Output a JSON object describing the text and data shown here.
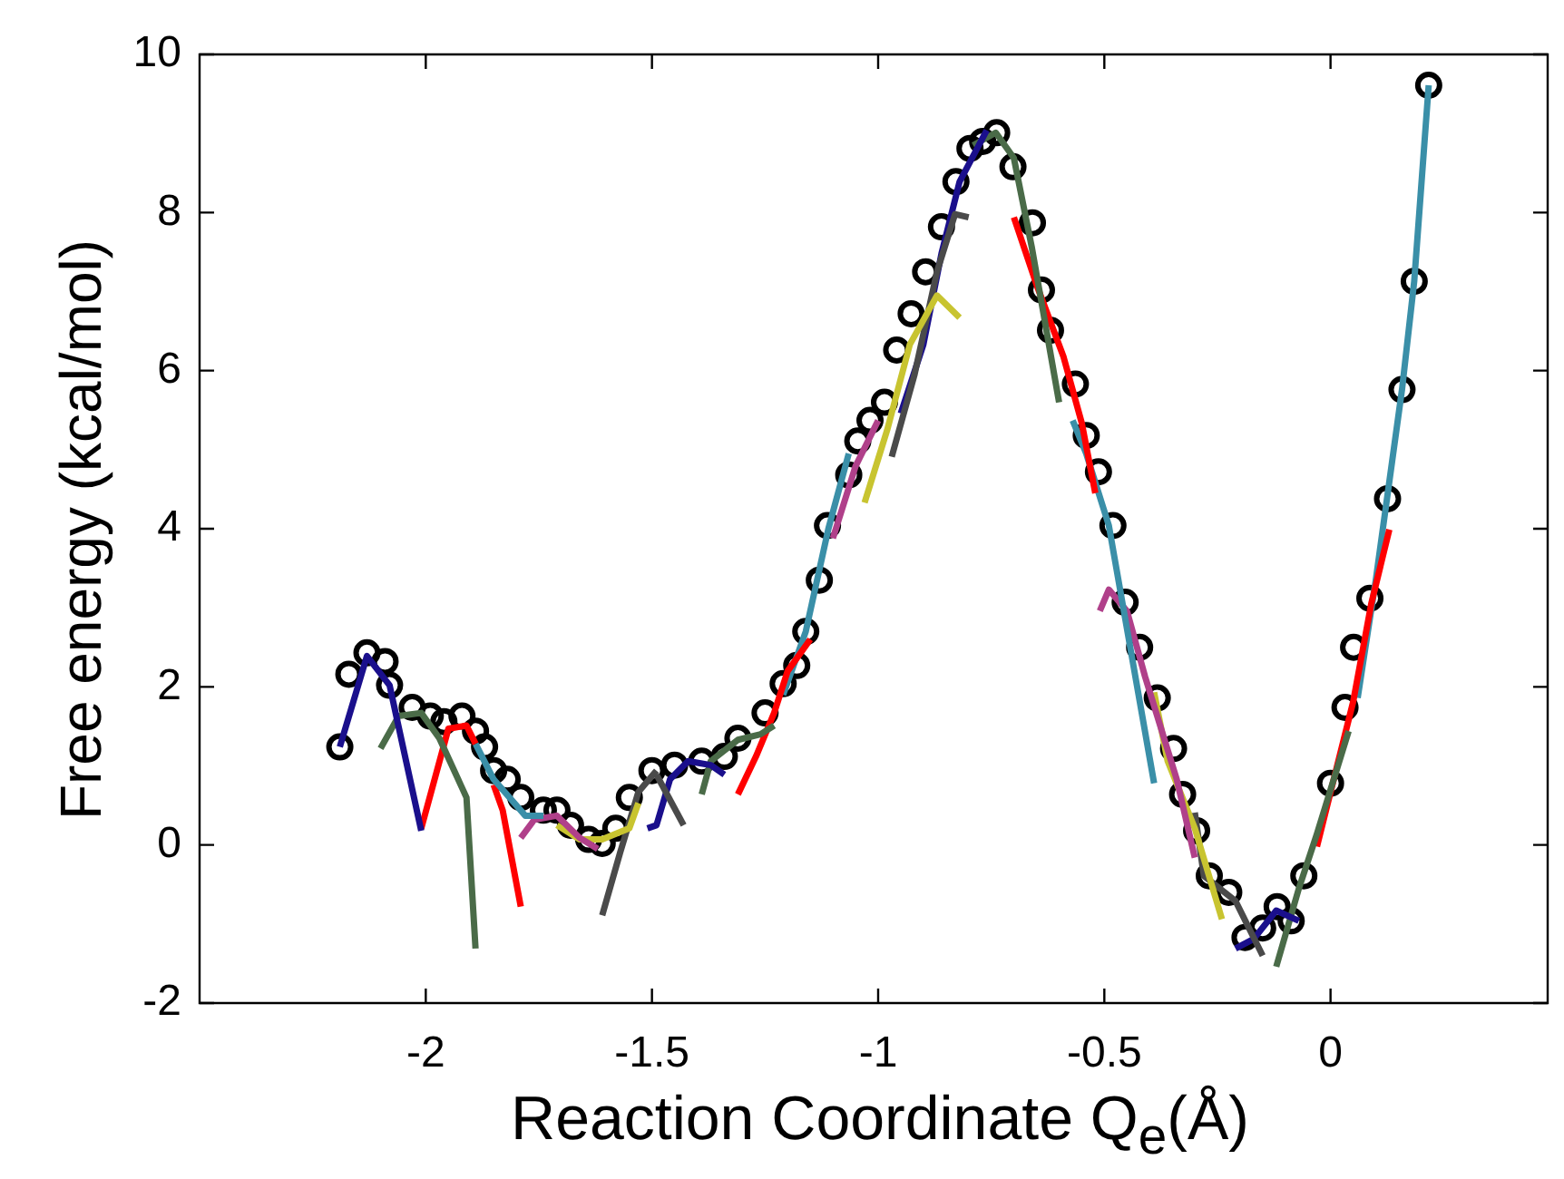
{
  "chart_data": {
    "type": "scatter",
    "xlabel": "Reaction Coordinate Q$_{e}$(Å)",
    "ylabel": "Free energy (kcal/mol)",
    "xlim": [
      -2.5,
      0.48
    ],
    "ylim": [
      -2,
      10
    ],
    "xticks": [
      -2,
      -1.5,
      -1,
      -0.5,
      0
    ],
    "yticks": [
      -2,
      0,
      2,
      4,
      6,
      8,
      10
    ],
    "grid": false,
    "legend": false,
    "series": [
      {
        "marker": "circle",
        "color": "#000000",
        "x": [
          -2.19,
          -2.17,
          -2.13,
          -2.09,
          -2.08,
          -2.03,
          -1.99,
          -1.96,
          -1.92,
          -1.89,
          -1.87,
          -1.85,
          -1.82,
          -1.79,
          -1.74,
          -1.71,
          -1.68,
          -1.64,
          -1.61,
          -1.58,
          -1.55,
          -1.5,
          -1.45,
          -1.39,
          -1.34,
          -1.31,
          -1.25,
          -1.21,
          -1.18,
          -1.16,
          -1.13,
          -1.112,
          -1.065,
          -1.045,
          -1.018,
          -0.986,
          -0.959,
          -0.927,
          -0.895,
          -0.86,
          -0.828,
          -0.797,
          -0.769,
          -0.738,
          -0.702,
          -0.659,
          -0.639,
          -0.619,
          -0.564,
          -0.54,
          -0.513,
          -0.481,
          -0.454,
          -0.422,
          -0.383,
          -0.347,
          -0.327,
          -0.296,
          -0.268,
          -0.225,
          -0.189,
          -0.15,
          -0.118,
          -0.087,
          -0.059,
          0.0,
          0.032,
          0.051,
          0.087,
          0.126,
          0.158,
          0.185,
          0.217
        ],
        "values": [
          1.24,
          2.16,
          2.43,
          2.32,
          2.02,
          1.74,
          1.63,
          1.56,
          1.63,
          1.44,
          1.24,
          0.94,
          0.83,
          0.6,
          0.44,
          0.44,
          0.25,
          0.07,
          0.02,
          0.21,
          0.6,
          0.94,
          1.01,
          1.06,
          1.12,
          1.35,
          1.67,
          2.04,
          2.27,
          2.7,
          3.35,
          4.04,
          4.68,
          5.11,
          5.37,
          5.6,
          6.26,
          6.72,
          7.25,
          7.82,
          8.39,
          8.81,
          8.9,
          9.01,
          8.58,
          7.87,
          7.02,
          6.51,
          5.83,
          5.18,
          4.72,
          4.04,
          3.07,
          2.5,
          1.86,
          1.22,
          0.64,
          0.18,
          -0.39,
          -0.6,
          -1.17,
          -1.05,
          -0.78,
          -0.96,
          -0.39,
          0.78,
          1.74,
          2.5,
          3.12,
          4.38,
          5.76,
          7.13,
          9.61
        ]
      },
      {
        "type": "line",
        "marker": "none",
        "color": "#1a0f8c",
        "x": [
          -2.19,
          -2.13,
          -2.08,
          -2.01
        ],
        "values": [
          1.24,
          2.39,
          2.02,
          0.18
        ]
      },
      {
        "type": "line",
        "marker": "none",
        "color": "#4a6b48",
        "x": [
          -2.1,
          -2.06,
          -2.01,
          -1.97,
          -1.91,
          -1.89
        ],
        "values": [
          1.22,
          1.63,
          1.67,
          1.35,
          0.6,
          -1.31
        ]
      },
      {
        "type": "line",
        "marker": "none",
        "color": "#ff0000",
        "x": [
          -2.01,
          -1.95,
          -1.91,
          -1.89
        ],
        "values": [
          0.21,
          1.47,
          1.51,
          1.28
        ]
      },
      {
        "type": "line",
        "marker": "none",
        "color": "#3a8fa8",
        "x": [
          -1.89,
          -1.85,
          -1.78,
          -1.74
        ],
        "values": [
          1.28,
          0.83,
          0.37,
          0.37
        ]
      },
      {
        "type": "line",
        "marker": "none",
        "color": "#ff0000",
        "x": [
          -1.85,
          -1.83,
          -1.79
        ],
        "values": [
          0.76,
          0.44,
          -0.78
        ]
      },
      {
        "type": "line",
        "marker": "none",
        "color": "#b0408a",
        "x": [
          -1.79,
          -1.76,
          -1.71,
          -1.66,
          -1.62
        ],
        "values": [
          0.09,
          0.32,
          0.37,
          0.09,
          -0.05
        ]
      },
      {
        "type": "line",
        "marker": "none",
        "color": "#c8c430",
        "x": [
          -1.71,
          -1.66,
          -1.61,
          -1.55,
          -1.53
        ],
        "values": [
          0.25,
          0.07,
          0.07,
          0.21,
          0.53
        ]
      },
      {
        "type": "line",
        "marker": "none",
        "color": "#4a4a4a",
        "x": [
          -1.61,
          -1.57,
          -1.53,
          -1.49
        ],
        "values": [
          -0.89,
          -0.09,
          0.67,
          0.94
        ]
      },
      {
        "type": "line",
        "marker": "none",
        "color": "#4a4a4a",
        "x": [
          -1.49,
          -1.43
        ],
        "values": [
          0.89,
          0.25
        ]
      },
      {
        "type": "line",
        "marker": "none",
        "color": "#1a0f8c",
        "x": [
          -1.51,
          -1.49,
          -1.46,
          -1.42,
          -1.37,
          -1.34
        ],
        "values": [
          0.21,
          0.25,
          0.83,
          1.06,
          1.01,
          0.89
        ]
      },
      {
        "type": "line",
        "marker": "none",
        "color": "#4a6b48",
        "x": [
          -1.39,
          -1.37,
          -1.31,
          -1.26,
          -1.23
        ],
        "values": [
          0.64,
          1.06,
          1.33,
          1.4,
          1.51
        ]
      },
      {
        "type": "line",
        "marker": "none",
        "color": "#ff0000",
        "x": [
          -1.31,
          -1.27,
          -1.23,
          -1.2,
          -1.15
        ],
        "values": [
          0.64,
          1.12,
          1.67,
          2.2,
          2.6
        ]
      },
      {
        "type": "line",
        "marker": "none",
        "color": "#3a8fa8",
        "x": [
          -1.21,
          -1.16,
          -1.11,
          -1.065
        ],
        "values": [
          1.9,
          2.7,
          4.0,
          4.95
        ]
      },
      {
        "type": "line",
        "marker": "none",
        "color": "#b0408a",
        "x": [
          -1.1,
          -1.05,
          -1.0
        ],
        "values": [
          3.88,
          4.79,
          5.37
        ]
      },
      {
        "type": "line",
        "marker": "none",
        "color": "#c8c430",
        "x": [
          -1.03,
          -0.98,
          -0.93,
          -0.87,
          -0.82
        ],
        "values": [
          4.33,
          5.25,
          6.33,
          6.95,
          6.67
        ]
      },
      {
        "type": "line",
        "marker": "none",
        "color": "#4a4a4a",
        "x": [
          -0.97,
          -0.92,
          -0.87,
          -0.83,
          -0.8
        ],
        "values": [
          4.91,
          5.94,
          7.25,
          7.98,
          7.94
        ]
      },
      {
        "type": "line",
        "marker": "none",
        "color": "#1a0f8c",
        "x": [
          -0.95,
          -0.9,
          -0.86,
          -0.82,
          -0.76
        ],
        "values": [
          5.46,
          6.33,
          7.48,
          8.39,
          9.04
        ]
      },
      {
        "type": "line",
        "marker": "none",
        "color": "#4a6b48",
        "x": [
          -0.79,
          -0.74,
          -0.7,
          -0.66,
          -0.6
        ],
        "values": [
          8.85,
          9.01,
          8.69,
          7.55,
          5.6
        ]
      },
      {
        "type": "line",
        "marker": "none",
        "color": "#ff0000",
        "x": [
          -0.7,
          -0.65,
          -0.59,
          -0.55,
          -0.52
        ],
        "values": [
          7.94,
          7.09,
          6.17,
          5.34,
          4.45
        ]
      },
      {
        "type": "line",
        "marker": "none",
        "color": "#3a8fa8",
        "x": [
          -0.57,
          -0.54,
          -0.49,
          -0.39
        ],
        "values": [
          5.37,
          4.95,
          4.04,
          0.78
        ]
      },
      {
        "type": "line",
        "marker": "none",
        "color": "#b0408a",
        "x": [
          -0.51,
          -0.49,
          -0.45,
          -0.41,
          -0.34,
          -0.3
        ],
        "values": [
          2.96,
          3.23,
          2.96,
          2.13,
          0.83,
          -0.16
        ]
      },
      {
        "type": "line",
        "marker": "none",
        "color": "#c8c430",
        "x": [
          -0.39,
          -0.36,
          -0.3,
          -0.24
        ],
        "values": [
          1.93,
          1.06,
          0.21,
          -0.94
        ]
      },
      {
        "type": "line",
        "marker": "none",
        "color": "#4a4a4a",
        "x": [
          -0.3,
          -0.28,
          -0.21,
          -0.15
        ],
        "values": [
          0.41,
          -0.39,
          -0.71,
          -1.4
        ]
      },
      {
        "type": "line",
        "marker": "none",
        "color": "#1a0f8c",
        "x": [
          -0.21,
          -0.17,
          -0.12,
          -0.07
        ],
        "values": [
          -1.31,
          -1.19,
          -0.83,
          -0.96
        ]
      },
      {
        "type": "line",
        "marker": "none",
        "color": "#4a6b48",
        "x": [
          -0.12,
          -0.07,
          -0.03,
          0.04
        ],
        "values": [
          -1.54,
          -0.55,
          0.14,
          1.44
        ]
      },
      {
        "type": "line",
        "marker": "none",
        "color": "#ff0000",
        "x": [
          -0.03,
          0.05,
          0.09,
          0.13
        ],
        "values": [
          -0.02,
          1.81,
          3.05,
          3.99
        ]
      },
      {
        "type": "line",
        "marker": "none",
        "color": "#3a8fa8",
        "x": [
          0.06,
          0.1,
          0.126,
          0.158,
          0.185,
          0.217
        ],
        "values": [
          1.86,
          3.35,
          4.43,
          5.76,
          7.13,
          9.61
        ]
      }
    ]
  }
}
